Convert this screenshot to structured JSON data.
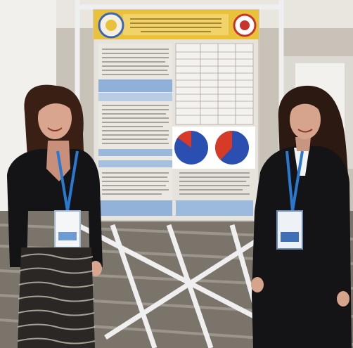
{
  "scene": {
    "colors": {
      "wall": "#c8c2b8",
      "ceiling": "#e9e6e0",
      "floor": "#7b746b",
      "poster_bg": "#e6e3dd",
      "poster_header": "#e9c13a",
      "pie_blue": "#2a4fb0",
      "pie_red": "#d73a26",
      "jacket": "#141416",
      "lanyard": "#2a79d1",
      "badge": "#f4f6f8",
      "skirt": "#2b2724",
      "frame": "#efefef"
    },
    "icons": [
      "poster-left-logo-icon",
      "poster-right-logo-icon",
      "pie-chart-icon"
    ],
    "pie_charts": [
      {
        "red_fraction": 0.15
      },
      {
        "red_fraction": 0.38
      }
    ]
  }
}
